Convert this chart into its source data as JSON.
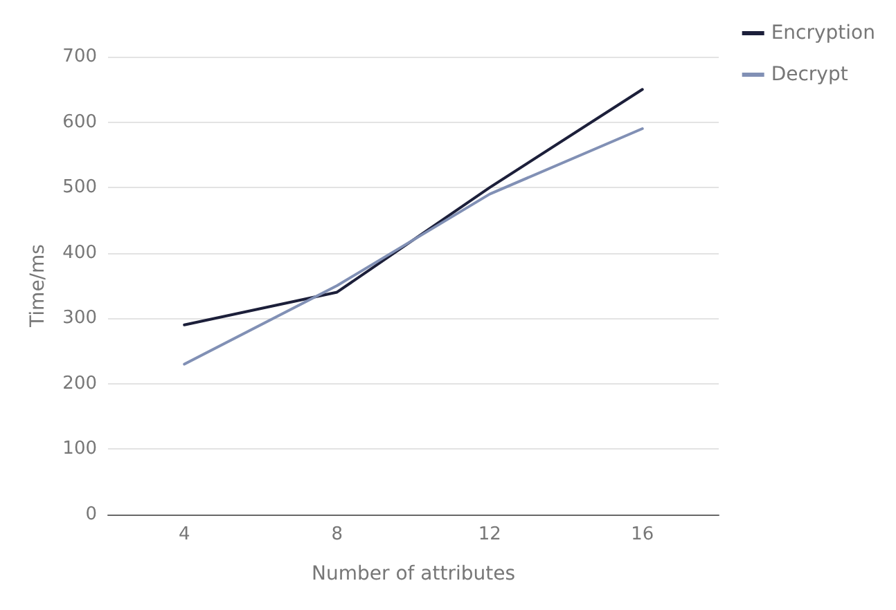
{
  "chart_data": {
    "type": "line",
    "xlabel": "Number of attributes",
    "ylabel": "Time/ms",
    "categories": [
      "4",
      "8",
      "12",
      "16"
    ],
    "series": [
      {
        "name": "Encryption",
        "color": "#1c1f3a",
        "values": [
          290,
          340,
          500,
          650
        ]
      },
      {
        "name": "Decrypt",
        "color": "#8190b5",
        "values": [
          230,
          350,
          490,
          590
        ]
      }
    ],
    "ylim": [
      0,
      700
    ],
    "yticks": [
      0,
      100,
      200,
      300,
      400,
      500,
      600,
      700
    ],
    "grid": "y",
    "legend": "top right",
    "marker": "none",
    "line_style": "solid"
  }
}
